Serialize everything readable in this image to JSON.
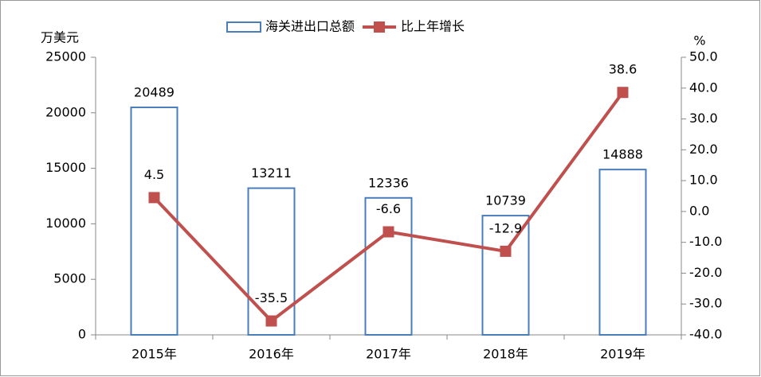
{
  "chart_data": {
    "type": "bar_line",
    "y_label": "万美元",
    "y2_label": "%",
    "categories": [
      "2015年",
      "2016年",
      "2017年",
      "2018年",
      "2019年"
    ],
    "series": [
      {
        "name": "海关进出口总额",
        "type": "bar",
        "color": "#4a7ebb",
        "values": [
          20489,
          13211,
          12336,
          10739,
          14888
        ]
      },
      {
        "name": "比上年增长",
        "type": "line",
        "axis": "y2",
        "color": "#c0504d",
        "values": [
          4.5,
          -35.5,
          -6.6,
          -12.9,
          38.6
        ]
      }
    ],
    "ylim": [
      0,
      25000
    ],
    "yticks": [
      0,
      5000,
      10000,
      15000,
      20000,
      25000
    ],
    "y2lim": [
      -40,
      50
    ],
    "y2ticks": [
      {
        "value": -40,
        "label": "-40.0"
      },
      {
        "value": -30,
        "label": "-30.0"
      },
      {
        "value": -20,
        "label": "-20.0"
      },
      {
        "value": -10,
        "label": "-10.0"
      },
      {
        "value": 0,
        "label": "0.0"
      },
      {
        "value": 10,
        "label": "10.0"
      },
      {
        "value": 20,
        "label": "20.0"
      },
      {
        "value": 30,
        "label": "30.0"
      },
      {
        "value": 40,
        "label": "40.0"
      },
      {
        "value": 50,
        "label": "50.0"
      }
    ],
    "legend": "top",
    "grid": false
  }
}
